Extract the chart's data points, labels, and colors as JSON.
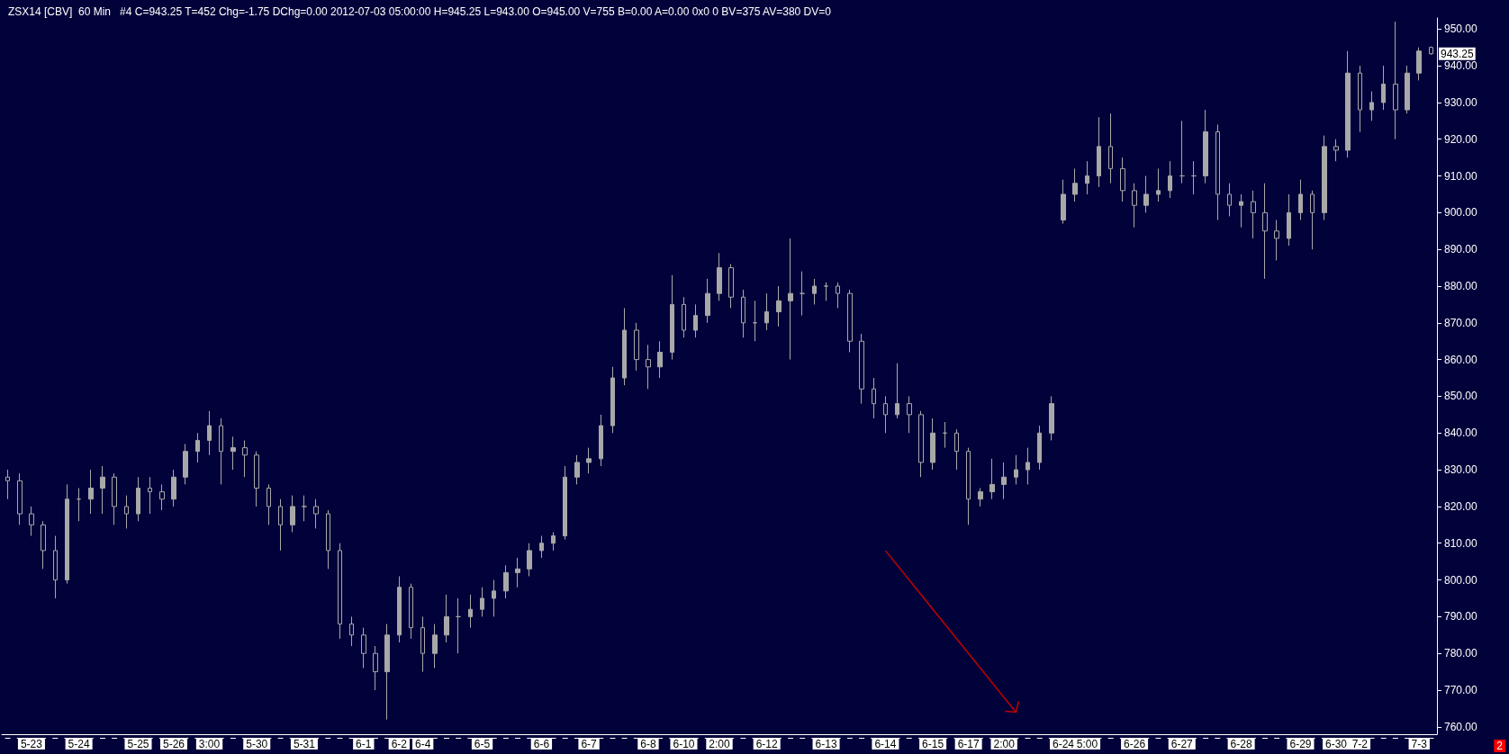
{
  "chart_data": {
    "type": "candlestick",
    "title": "ZSX14 [CBV]  60 Min   #4 C=943.25 T=452 Chg=-1.75 DChg=0.00 2012-07-03 05:00:00 H=945.25 L=943.00 O=945.00 V=755 B=0.00 A=0.00 0x0 0 BV=375 AV=380 DV=0",
    "categories": [
      null,
      null,
      "5-23",
      null,
      null,
      null,
      "5-24",
      null,
      null,
      null,
      null,
      "5-25",
      null,
      null,
      "5-26",
      null,
      null,
      "3:00",
      null,
      null,
      null,
      "5-30",
      null,
      null,
      null,
      "5-31",
      null,
      null,
      null,
      null,
      "6-1",
      null,
      null,
      "6-2",
      null,
      "6-4",
      null,
      null,
      null,
      null,
      "6-5",
      null,
      null,
      null,
      null,
      "6-6",
      null,
      null,
      null,
      "6-7",
      null,
      null,
      null,
      null,
      "6-8",
      null,
      null,
      "6-10",
      null,
      null,
      "2:00",
      null,
      null,
      null,
      "6-12",
      null,
      null,
      null,
      null,
      "6-13",
      null,
      null,
      null,
      null,
      "6-14",
      null,
      null,
      null,
      "6-15",
      null,
      null,
      "6-17",
      null,
      null,
      "2:00",
      null,
      null,
      null,
      null,
      "6-24",
      null,
      "5:00",
      null,
      null,
      null,
      "6-26",
      null,
      null,
      null,
      "6-27",
      null,
      null,
      null,
      null,
      "6-28",
      null,
      null,
      null,
      null,
      "6-29",
      null,
      null,
      "6-30",
      null,
      "7-2",
      null,
      null,
      null,
      null,
      "7-3",
      null
    ],
    "series": [
      {
        "color": "#a8a8a8",
        "ohlc": [
          [
            828,
            830,
            822,
            827
          ],
          [
            827,
            829,
            815,
            818
          ],
          [
            818,
            820,
            812,
            815
          ],
          [
            815,
            816,
            803,
            808
          ],
          [
            808,
            812,
            795,
            800
          ],
          [
            800,
            826,
            799,
            822
          ],
          [
            822,
            825,
            816,
            822
          ],
          [
            822,
            830,
            818,
            825
          ],
          [
            825,
            831,
            818,
            828
          ],
          [
            828,
            829,
            815,
            820
          ],
          [
            820,
            823,
            814,
            818
          ],
          [
            818,
            828,
            816,
            825
          ],
          [
            825,
            828,
            818,
            824
          ],
          [
            824,
            826,
            819,
            822
          ],
          [
            822,
            830,
            820,
            828
          ],
          [
            828,
            837,
            826,
            835
          ],
          [
            835,
            840,
            832,
            838
          ],
          [
            838,
            846,
            834,
            842
          ],
          [
            842,
            844,
            826,
            835
          ],
          [
            835,
            839,
            830,
            836
          ],
          [
            836,
            838,
            828,
            834
          ],
          [
            834,
            835,
            820,
            825
          ],
          [
            825,
            826,
            815,
            820
          ],
          [
            820,
            822,
            808,
            815
          ],
          [
            815,
            823,
            813,
            820
          ],
          [
            820,
            823,
            816,
            820
          ],
          [
            820,
            822,
            814,
            818
          ],
          [
            818,
            819,
            803,
            808
          ],
          [
            808,
            810,
            784,
            788
          ],
          [
            788,
            790,
            782,
            785
          ],
          [
            785,
            787,
            776,
            780
          ],
          [
            780,
            782,
            770,
            775
          ],
          [
            775,
            788,
            762,
            785
          ],
          [
            785,
            801,
            783,
            798
          ],
          [
            798,
            799,
            784,
            787
          ],
          [
            787,
            790,
            775,
            780
          ],
          [
            780,
            788,
            776,
            785
          ],
          [
            785,
            796,
            783,
            790
          ],
          [
            790,
            795,
            780,
            790
          ],
          [
            790,
            796,
            787,
            792
          ],
          [
            792,
            798,
            790,
            795
          ],
          [
            795,
            800,
            790,
            797
          ],
          [
            797,
            804,
            795,
            802
          ],
          [
            802,
            806,
            798,
            803
          ],
          [
            803,
            810,
            801,
            808
          ],
          [
            808,
            812,
            806,
            810
          ],
          [
            810,
            813,
            808,
            812
          ],
          [
            812,
            831,
            811,
            828
          ],
          [
            828,
            834,
            826,
            832
          ],
          [
            832,
            836,
            829,
            833
          ],
          [
            833,
            845,
            831,
            842
          ],
          [
            842,
            858,
            840,
            855
          ],
          [
            855,
            874,
            853,
            868
          ],
          [
            868,
            870,
            857,
            860
          ],
          [
            860,
            864,
            852,
            858
          ],
          [
            858,
            865,
            855,
            862
          ],
          [
            862,
            883,
            860,
            875
          ],
          [
            875,
            877,
            866,
            868
          ],
          [
            868,
            875,
            866,
            872
          ],
          [
            872,
            882,
            870,
            878
          ],
          [
            878,
            889,
            876,
            885
          ],
          [
            885,
            886,
            874,
            877
          ],
          [
            877,
            879,
            866,
            870
          ],
          [
            870,
            876,
            865,
            870
          ],
          [
            870,
            878,
            868,
            873
          ],
          [
            873,
            880,
            869,
            876
          ],
          [
            876,
            893,
            860,
            878
          ],
          [
            878,
            884,
            872,
            878
          ],
          [
            878,
            882,
            875,
            880
          ],
          [
            880,
            881,
            876,
            880
          ],
          [
            880,
            881,
            874,
            878
          ],
          [
            878,
            879,
            862,
            865
          ],
          [
            865,
            867,
            848,
            852
          ],
          [
            852,
            855,
            844,
            848
          ],
          [
            848,
            850,
            840,
            845
          ],
          [
            845,
            859,
            844,
            848
          ],
          [
            848,
            850,
            840,
            845
          ],
          [
            845,
            846,
            828,
            832
          ],
          [
            832,
            844,
            830,
            840
          ],
          [
            840,
            843,
            836,
            840
          ],
          [
            840,
            841,
            830,
            835
          ],
          [
            835,
            836,
            815,
            822
          ],
          [
            822,
            825,
            820,
            824
          ],
          [
            824,
            833,
            822,
            826
          ],
          [
            826,
            832,
            822,
            828
          ],
          [
            828,
            834,
            826,
            830
          ],
          [
            830,
            836,
            826,
            832
          ],
          [
            832,
            842,
            830,
            840
          ],
          [
            840,
            850,
            838,
            848
          ],
          [
            898,
            909,
            897,
            905
          ],
          [
            905,
            912,
            903,
            908
          ],
          [
            908,
            914,
            905,
            910
          ],
          [
            910,
            926,
            907,
            918
          ],
          [
            918,
            927,
            908,
            912
          ],
          [
            912,
            915,
            903,
            906
          ],
          [
            906,
            908,
            896,
            902
          ],
          [
            902,
            910,
            900,
            905
          ],
          [
            905,
            912,
            903,
            906
          ],
          [
            906,
            914,
            904,
            910
          ],
          [
            910,
            925,
            908,
            910
          ],
          [
            910,
            914,
            905,
            910
          ],
          [
            910,
            928,
            908,
            922
          ],
          [
            922,
            924,
            898,
            905
          ],
          [
            905,
            908,
            899,
            902
          ],
          [
            902,
            905,
            896,
            903
          ],
          [
            903,
            906,
            893,
            900
          ],
          [
            900,
            908,
            882,
            895
          ],
          [
            895,
            898,
            887,
            893
          ],
          [
            893,
            905,
            891,
            900
          ],
          [
            900,
            909,
            898,
            905
          ],
          [
            905,
            906,
            890,
            900
          ],
          [
            900,
            921,
            898,
            918
          ],
          [
            918,
            920,
            914,
            917
          ],
          [
            917,
            944,
            915,
            938
          ],
          [
            938,
            940,
            922,
            928
          ],
          [
            928,
            933,
            925,
            930
          ],
          [
            930,
            940,
            928,
            935
          ],
          [
            935,
            952,
            920,
            928
          ],
          [
            928,
            940,
            927,
            938
          ],
          [
            938,
            945,
            936,
            944
          ],
          [
            945,
            945.25,
            943,
            943.25
          ]
        ]
      }
    ],
    "ylim": [
      758,
      953
    ],
    "yticks": [
      {
        "value": 760,
        "label": "760.00"
      },
      {
        "value": 770,
        "label": "770.00"
      },
      {
        "value": 780,
        "label": "780.00"
      },
      {
        "value": 790,
        "label": "790.00"
      },
      {
        "value": 800,
        "label": "800.00"
      },
      {
        "value": 810,
        "label": "810.00"
      },
      {
        "value": 820,
        "label": "820.00"
      },
      {
        "value": 830,
        "label": "830.00"
      },
      {
        "value": 840,
        "label": "840.00"
      },
      {
        "value": 850,
        "label": "850.00"
      },
      {
        "value": 860,
        "label": "860.00"
      },
      {
        "value": 870,
        "label": "870.00"
      },
      {
        "value": 880,
        "label": "880.00"
      },
      {
        "value": 890,
        "label": "890.00"
      },
      {
        "value": 900,
        "label": "900.00"
      },
      {
        "value": 910,
        "label": "910.00"
      },
      {
        "value": 920,
        "label": "920.00"
      },
      {
        "value": 930,
        "label": "930.00"
      },
      {
        "value": 940,
        "label": "940.00"
      },
      {
        "value": 950,
        "label": "950.00"
      }
    ],
    "annotations": [
      {
        "text": "943.25",
        "y": 943.25
      },
      "2"
    ],
    "grid": false
  }
}
